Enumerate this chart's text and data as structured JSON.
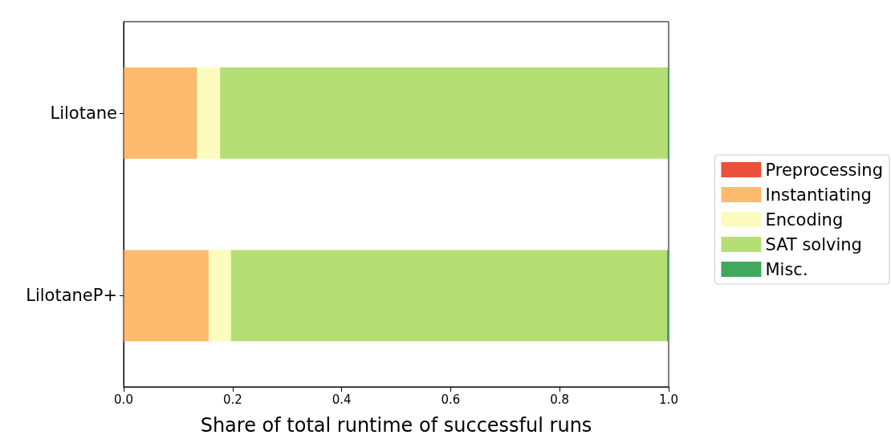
{
  "chart_data": {
    "type": "bar",
    "orientation": "horizontal",
    "stacked": true,
    "xlabel": "Share of total runtime of successful runs",
    "categories": [
      "Lilotane",
      "LilotaneP+"
    ],
    "series": [
      {
        "name": "Preprocessing",
        "color": "#e8533a",
        "values": [
          0.001,
          0.001
        ]
      },
      {
        "name": "Instantiating",
        "color": "#fcbb6d",
        "values": [
          0.134,
          0.155
        ]
      },
      {
        "name": "Encoding",
        "color": "#fdfcbf",
        "values": [
          0.042,
          0.041
        ]
      },
      {
        "name": "SAT solving",
        "color": "#b5df74",
        "values": [
          0.821,
          0.8
        ]
      },
      {
        "name": "Misc.",
        "color": "#41a85c",
        "values": [
          0.002,
          0.003
        ]
      }
    ],
    "xlim": [
      0,
      1
    ],
    "xticks": [
      {
        "value": 0,
        "label": "0.0"
      },
      {
        "value": 0.2,
        "label": "0.2"
      },
      {
        "value": 0.4,
        "label": "0.4"
      },
      {
        "value": 0.6,
        "label": "0.6"
      },
      {
        "value": 0.8,
        "label": "0.8"
      },
      {
        "value": 1,
        "label": "1.0"
      }
    ],
    "grid": false,
    "legend": "right"
  }
}
